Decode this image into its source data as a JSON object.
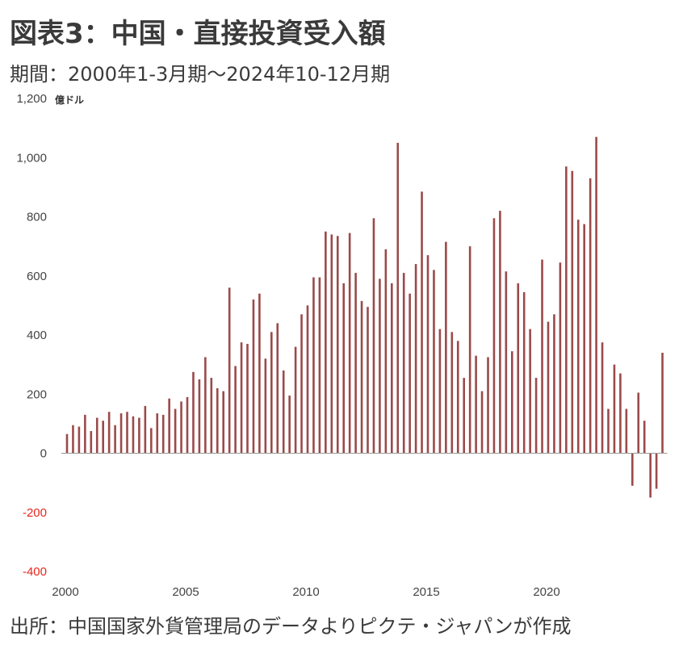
{
  "title": "図表3：中国・直接投資受入額",
  "subtitle": "期間：2000年1-3月期～2024年10-12月期",
  "source": "出所：中国国家外貨管理局のデータよりピクテ・ジャパンが作成",
  "colors": {
    "bar": "#9b4a4a",
    "negative_label": "#e8261c",
    "axis": "#999999"
  },
  "chart_data": {
    "type": "bar",
    "title": "図表3：中国・直接投資受入額",
    "ylabel": "億ドル",
    "ylim": [
      -400,
      1200
    ],
    "yticks": [
      {
        "value": 1200,
        "label": "1,200"
      },
      {
        "value": 1000,
        "label": "1,000"
      },
      {
        "value": 800,
        "label": "800"
      },
      {
        "value": 600,
        "label": "600"
      },
      {
        "value": 400,
        "label": "400"
      },
      {
        "value": 200,
        "label": "200"
      },
      {
        "value": 0,
        "label": "0"
      },
      {
        "value": -200,
        "label": "-200"
      },
      {
        "value": -400,
        "label": "-400"
      }
    ],
    "xticks": [
      {
        "index": 0,
        "label": "2000"
      },
      {
        "index": 20,
        "label": "2005"
      },
      {
        "index": 40,
        "label": "2010"
      },
      {
        "index": 60,
        "label": "2015"
      },
      {
        "index": 80,
        "label": "2020"
      }
    ],
    "grid": false,
    "legend": "none",
    "period_start": "2000 Q1",
    "period_end": "2024 Q4",
    "values": [
      65,
      95,
      90,
      130,
      75,
      120,
      110,
      140,
      95,
      135,
      140,
      125,
      120,
      160,
      85,
      135,
      130,
      185,
      150,
      175,
      190,
      275,
      250,
      325,
      255,
      220,
      210,
      560,
      295,
      375,
      370,
      520,
      540,
      320,
      410,
      440,
      280,
      195,
      360,
      470,
      500,
      595,
      595,
      750,
      740,
      735,
      575,
      745,
      610,
      515,
      495,
      795,
      590,
      690,
      575,
      1050,
      610,
      540,
      640,
      885,
      670,
      620,
      420,
      715,
      410,
      380,
      255,
      700,
      330,
      210,
      325,
      795,
      820,
      615,
      345,
      575,
      545,
      420,
      255,
      655,
      445,
      470,
      645,
      970,
      955,
      790,
      775,
      930,
      1070,
      375,
      150,
      300,
      270,
      150,
      -110,
      205,
      110,
      -150,
      -120,
      340
    ]
  }
}
